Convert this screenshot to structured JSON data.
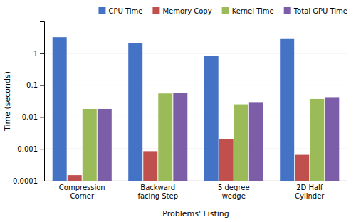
{
  "chart_data": {
    "type": "bar",
    "categories": [
      "Compression\nCorner",
      "Backward\nfacing Step",
      "5 degree\nwedge",
      "2D Half\nCylinder"
    ],
    "series": [
      {
        "name": "CPU Time",
        "color": "#4472C4",
        "values": [
          3.2,
          2.1,
          0.82,
          2.8
        ]
      },
      {
        "name": "Memory Copy",
        "color": "#C0504D",
        "values": [
          0.00015,
          0.00085,
          0.002,
          0.00065
        ]
      },
      {
        "name": "Kernel Time",
        "color": "#9BBB59",
        "values": [
          0.018,
          0.055,
          0.025,
          0.037
        ]
      },
      {
        "name": "Total GPU Time",
        "color": "#7B5EA7",
        "values": [
          0.018,
          0.058,
          0.028,
          0.04
        ]
      }
    ],
    "xlabel": "Problems' Listing",
    "ylabel": "Time (seconds)",
    "log": "y",
    "ylim": [
      0.0001,
      10
    ],
    "yticks": [
      0.0001,
      0.001,
      0.01,
      0.1,
      1
    ],
    "grid": true,
    "legend": "upper right"
  }
}
